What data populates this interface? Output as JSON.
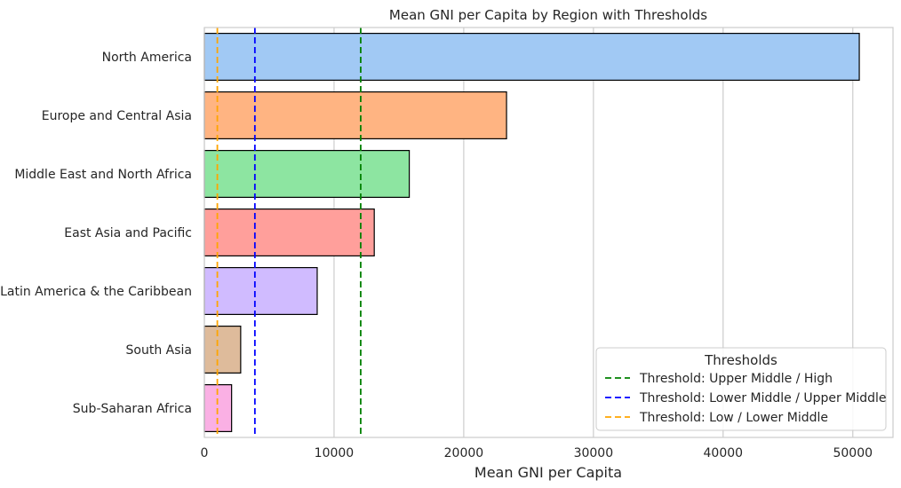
{
  "chart_data": {
    "type": "bar",
    "orientation": "horizontal",
    "title": "Mean GNI per Capita by Region with Thresholds",
    "xlabel": "Mean GNI per Capita",
    "ylabel": "",
    "xlim": [
      0,
      53100
    ],
    "xticks": [
      0,
      10000,
      20000,
      30000,
      40000,
      50000
    ],
    "xtick_labels": [
      "0",
      "10000",
      "20000",
      "30000",
      "40000",
      "50000"
    ],
    "grid": "vertical",
    "categories": [
      "North America",
      "Europe and Central Asia",
      "Middle East and North Africa",
      "East Asia and Pacific",
      "Latin America & the Caribbean",
      "South Asia",
      "Sub-Saharan Africa"
    ],
    "values": [
      50500,
      23300,
      15800,
      13100,
      8700,
      2800,
      2100
    ],
    "bar_colors": [
      "#a1c9f4",
      "#ffb482",
      "#8de5a1",
      "#ff9f9b",
      "#d0bbff",
      "#debb9b",
      "#fab0e4"
    ],
    "thresholds": [
      {
        "label": "Threshold: Upper Middle / High",
        "value": 12055,
        "color": "#008000"
      },
      {
        "label": "Threshold: Lower Middle / Upper Middle",
        "value": 3895,
        "color": "#0000ff"
      },
      {
        "label": "Threshold: Low / Lower Middle",
        "value": 1000,
        "color": "#ffa500"
      }
    ],
    "legend": {
      "title": "Thresholds",
      "position": "lower-right"
    }
  }
}
